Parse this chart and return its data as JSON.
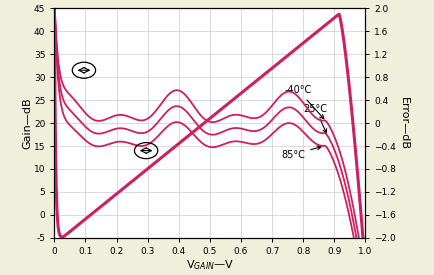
{
  "bg_color": "#f0efdc",
  "plot_bg": "#ffffff",
  "line_color": "#cc2060",
  "ylim_left": [
    -5,
    45
  ],
  "ylim_right": [
    -2.0,
    2.0
  ],
  "xlim": [
    0,
    1.0
  ],
  "yticks_left": [
    -5,
    0,
    5,
    10,
    15,
    20,
    25,
    30,
    35,
    40,
    45
  ],
  "yticks_right": [
    -2.0,
    -1.6,
    -1.2,
    -0.8,
    -0.4,
    0,
    0.4,
    0.8,
    1.2,
    1.6,
    2.0
  ],
  "xticks": [
    0,
    0.1,
    0.2,
    0.3,
    0.4,
    0.5,
    0.6,
    0.7,
    0.8,
    0.9,
    1.0
  ],
  "xlabel": "V$_{GAIN}$—V",
  "ylabel_left": "Gain—dB",
  "ylabel_right": "Error—dB",
  "ann_minus40": "-40°C",
  "ann_25": "25°C",
  "ann_85": "85°C"
}
